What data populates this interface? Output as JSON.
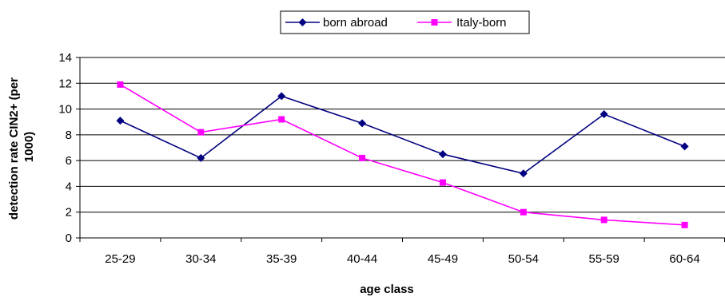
{
  "chart_data": {
    "type": "line",
    "categories": [
      "25-29",
      "30-34",
      "35-39",
      "40-44",
      "45-49",
      "50-54",
      "55-59",
      "60-64"
    ],
    "series": [
      {
        "name": "born abroad",
        "values": [
          9.1,
          6.2,
          11.0,
          8.9,
          6.5,
          5.0,
          9.6,
          7.1
        ],
        "color": "#000080",
        "marker": "diamond"
      },
      {
        "name": "Italy-born",
        "values": [
          11.9,
          8.2,
          9.2,
          6.2,
          4.3,
          2.0,
          1.4,
          1.0
        ],
        "color": "#ff00ff",
        "marker": "square"
      }
    ],
    "xlabel": "age class",
    "ylabel_lines": [
      "detection rate CIN2+ (per",
      "1000)"
    ],
    "ylim": [
      0,
      14
    ],
    "yticks": [
      0,
      2,
      4,
      6,
      8,
      10,
      12,
      14
    ],
    "grid": "horizontal",
    "legend_position": "top-center"
  }
}
